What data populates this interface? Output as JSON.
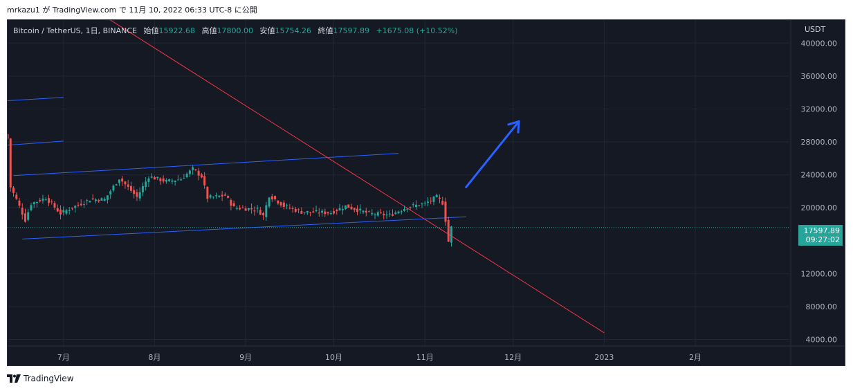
{
  "caption": "mrkazu1 が TradingView.com で 11月 10, 2022 06:33 UTC-8 に公開",
  "legend": {
    "symbol": "Bitcoin / TetherUS, 1日, BINANCE",
    "open_label": "始値",
    "open": "15922.68",
    "high_label": "高値",
    "high": "17800.00",
    "low_label": "安値",
    "low": "15754.26",
    "close_label": "終値",
    "close": "17597.89",
    "change": "+1675.08 (+10.52%)"
  },
  "price_tag": {
    "price": "17597.89",
    "countdown": "09:27:02"
  },
  "footer": {
    "brand": "TradingView"
  },
  "colors": {
    "up": "#26a69a",
    "down": "#ef5350",
    "trendline": "#f23645",
    "channel": "#2962ff",
    "arrow": "#2962ff",
    "background": "#151924"
  },
  "chart_data": {
    "type": "candlestick",
    "unit": "USDT",
    "y_ticks": [
      "40000.00",
      "36000.00",
      "32000.00",
      "28000.00",
      "24000.00",
      "20000.00",
      "12000.00",
      "8000.00",
      "4000.00"
    ],
    "y_tick_values": [
      40000,
      36000,
      32000,
      28000,
      24000,
      20000,
      12000,
      8000,
      4000
    ],
    "x_ticks": [
      "7月",
      "8月",
      "9月",
      "10月",
      "11月",
      "12月",
      "2023",
      "2月"
    ],
    "x_tick_dates": [
      "2022-07-01",
      "2022-08-01",
      "2022-09-01",
      "2022-10-01",
      "2022-11-01",
      "2022-12-01",
      "2023-01-01",
      "2023-02-01"
    ],
    "x_range": [
      "2022-06-12",
      "2023-03-05"
    ],
    "ylim": [
      3200,
      42800
    ],
    "grid": true,
    "last_price": 17597.89,
    "candle_anchors": [
      [
        "2022-06-12",
        28400
      ],
      [
        "2022-06-13",
        22500
      ],
      [
        "2022-06-15",
        21000
      ],
      [
        "2022-06-18",
        18500
      ],
      [
        "2022-06-20",
        20500
      ],
      [
        "2022-06-25",
        21200
      ],
      [
        "2022-06-30",
        19300
      ],
      [
        "2022-07-05",
        20200
      ],
      [
        "2022-07-10",
        21000
      ],
      [
        "2022-07-15",
        21000
      ],
      [
        "2022-07-20",
        23600
      ],
      [
        "2022-07-26",
        21300
      ],
      [
        "2022-07-30",
        23800
      ],
      [
        "2022-08-05",
        23200
      ],
      [
        "2022-08-10",
        23500
      ],
      [
        "2022-08-14",
        24700
      ],
      [
        "2022-08-17",
        23800
      ],
      [
        "2022-08-19",
        21200
      ],
      [
        "2022-08-25",
        21500
      ],
      [
        "2022-08-28",
        20000
      ],
      [
        "2022-09-05",
        19800
      ],
      [
        "2022-09-07",
        19000
      ],
      [
        "2022-09-09",
        21500
      ],
      [
        "2022-09-13",
        20500
      ],
      [
        "2022-09-14",
        20200
      ],
      [
        "2022-09-20",
        19500
      ],
      [
        "2022-09-30",
        19400
      ],
      [
        "2022-10-05",
        20200
      ],
      [
        "2022-10-13",
        19300
      ],
      [
        "2022-10-20",
        19100
      ],
      [
        "2022-10-26",
        20100
      ],
      [
        "2022-11-01",
        20500
      ],
      [
        "2022-11-05",
        21300
      ],
      [
        "2022-11-07",
        20600
      ],
      [
        "2022-11-08",
        18500
      ],
      [
        "2022-11-09",
        15900
      ],
      [
        "2022-11-10",
        17597.89
      ]
    ],
    "lines": [
      {
        "from": [
          "2022-06-12",
          33000
        ],
        "to": [
          "2022-07-01",
          33400
        ]
      },
      {
        "from": [
          "2022-06-12",
          27600
        ],
        "to": [
          "2022-07-01",
          28100
        ]
      },
      {
        "from": [
          "2022-06-14",
          23900
        ],
        "to": [
          "2022-10-23",
          26600
        ]
      },
      {
        "from": [
          "2022-06-17",
          16200
        ],
        "to": [
          "2022-11-15",
          18900
        ]
      },
      {
        "from": [
          "2022-06-24",
          48000
        ],
        "to": [
          "2023-01-01",
          4800
        ]
      }
    ],
    "arrow": {
      "from": [
        "2022-11-15",
        22500
      ],
      "to": [
        "2022-12-03",
        30500
      ]
    }
  }
}
